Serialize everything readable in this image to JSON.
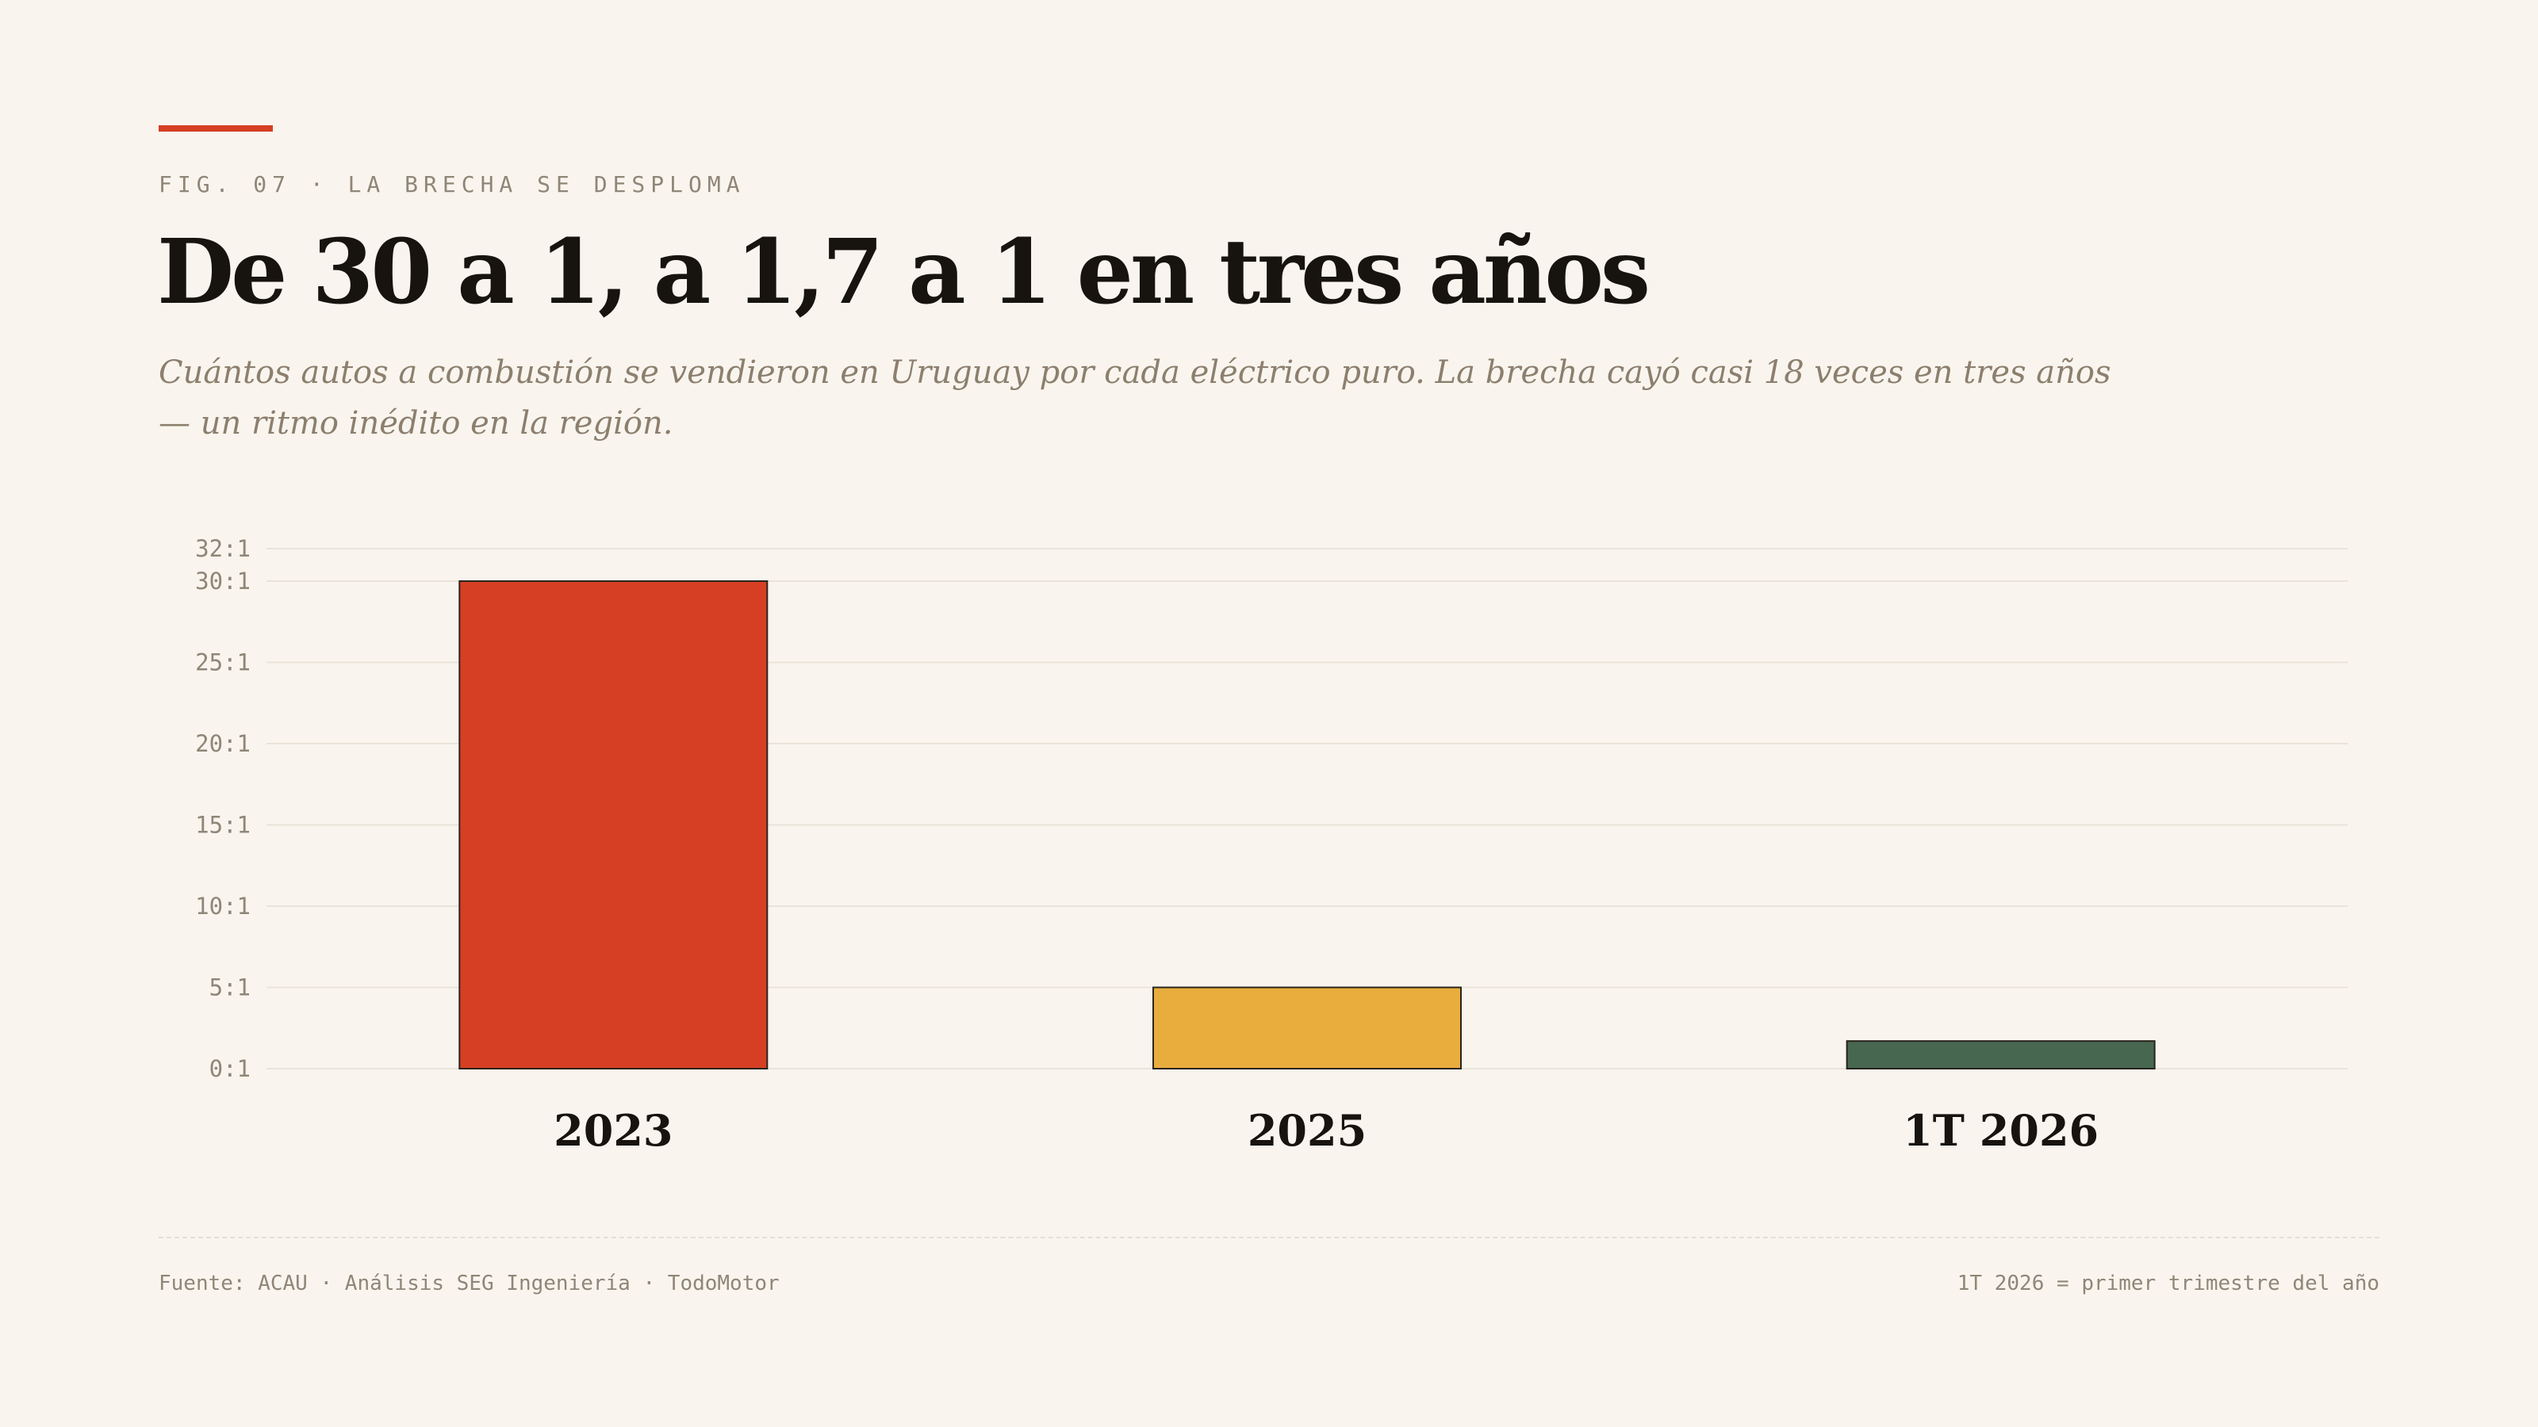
{
  "header": {
    "eyebrow": "FIG. 07 · LA BRECHA SE DESPLOMA",
    "title": "De 30 a 1, a 1,7 a 1 en tres años",
    "subtitle": "Cuántos autos a combustión se vendieron en Uruguay por cada eléctrico puro. La brecha cayó casi 18 veces en tres años — un ritmo inédito en la región."
  },
  "chart_data": {
    "type": "bar",
    "categories": [
      "2023",
      "2025",
      "1T 2026"
    ],
    "values": [
      30,
      5,
      1.7
    ],
    "ylim": [
      0,
      32
    ],
    "yticks": [
      0,
      5,
      10,
      15,
      20,
      25,
      30,
      32
    ],
    "ytick_labels": [
      "0:1",
      "5:1",
      "10:1",
      "15:1",
      "20:1",
      "25:1",
      "30:1",
      "32:1"
    ],
    "grid": true,
    "colors": [
      "#d63f23",
      "#e8ad3d",
      "#476750"
    ]
  },
  "footer": {
    "source": "Fuente: ACAU · Análisis SEG Ingeniería · TodoMotor",
    "note": "1T 2026 = primer trimestre del año"
  },
  "colors": {
    "accent": "#d63f23",
    "background": "#f9f5ee",
    "text": "#17130f"
  }
}
